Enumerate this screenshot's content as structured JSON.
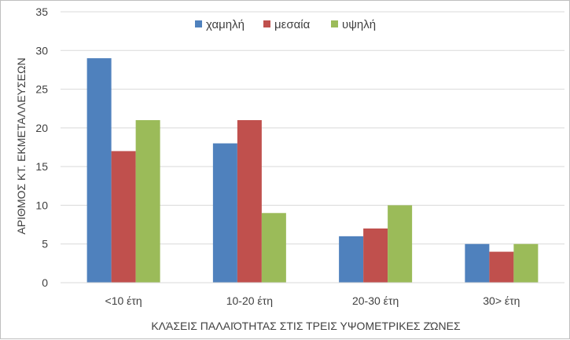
{
  "chart_data": {
    "type": "bar",
    "title": "",
    "xlabel": "ΚΛΆΣΕΙΣ ΠΑΛΑΙΌΤΗΤΑΣ ΣΤΙΣ ΤΡΕΙΣ ΥΨΟΜΕΤΡΙΚΕΣ ΖΏΝΕΣ",
    "ylabel": "ΑΡΙΘΜΟΣ ΚΤ. ΕΚΜΕΤΑΛΛΕΥΣΕΩΝ",
    "ylim": [
      0,
      35
    ],
    "yticks": [
      "0",
      "5",
      "10",
      "15",
      "20",
      "25",
      "30",
      "35"
    ],
    "categories": [
      "<10 έτη",
      "10-20 έτη",
      "20-30 έτη",
      "30> έτη"
    ],
    "series": [
      {
        "name": "χαμηλή",
        "color": "#4f81bd",
        "values": [
          29,
          18,
          6,
          5
        ]
      },
      {
        "name": "μεσαία",
        "color": "#c0504d",
        "values": [
          17,
          21,
          7,
          4
        ]
      },
      {
        "name": "υψηλή",
        "color": "#9bbb59",
        "values": [
          21,
          9,
          10,
          5
        ]
      }
    ],
    "grid": true,
    "legend": "top-center"
  }
}
